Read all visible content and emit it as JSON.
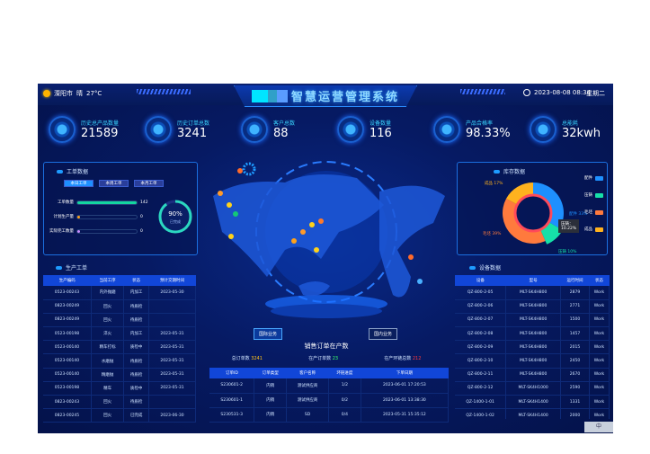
{
  "header": {
    "city": "溧阳市",
    "weather": "晴",
    "temp": "27°C",
    "title": "智慧运营管理系统",
    "datetime": "2023-08-08 08:34",
    "weekday": "星期二"
  },
  "kpis": [
    {
      "label": "历史总产品数量",
      "value": "21589"
    },
    {
      "label": "历史订单总数",
      "value": "3241"
    },
    {
      "label": "客户总数",
      "value": "88"
    },
    {
      "label": "设备数量",
      "value": "116"
    },
    {
      "label": "产品合格率",
      "value": "98.33%"
    },
    {
      "label": "总能耗",
      "value": "32kwh"
    }
  ],
  "work_orders": {
    "title": "工单数据",
    "tabs": [
      "本日工单",
      "本周工单",
      "本月工单"
    ],
    "active_tab": 0,
    "bars": [
      {
        "label": "工单数量",
        "value": "142",
        "fill": 1.0,
        "color": "#13d6a0"
      },
      {
        "label": "计划生产量",
        "value": "0",
        "fill": 0.05,
        "color": "#ffa31a"
      },
      {
        "label": "实际完工数量",
        "value": "0",
        "fill": 0.05,
        "color": "#c88cff"
      }
    ],
    "ring": {
      "percent": "90%",
      "label": "已完成",
      "fraction": 0.9
    }
  },
  "production": {
    "title": "生产工单",
    "columns": [
      "生产编码",
      "当前工序",
      "状态",
      "预计交期时间"
    ],
    "rows": [
      [
        "0523-00243",
        "内外抛磨",
        "内加工",
        "2023-05-30"
      ],
      [
        "0823-00249",
        "回火",
        "待质检",
        ""
      ],
      [
        "0823-00249",
        "回火",
        "待质检",
        ""
      ],
      [
        "0523-00198",
        "淬火",
        "内加工",
        "2023-05-31"
      ],
      [
        "0523-00140",
        "精车打标",
        "质检中",
        "2023-05-31"
      ],
      [
        "0523-00140",
        "水磨抛",
        "待质检",
        "2023-05-31"
      ],
      [
        "0523-00140",
        "精磨抛",
        "待质检",
        "2023-05-31"
      ],
      [
        "0523-00198",
        "精车",
        "质检中",
        "2023-05-31"
      ],
      [
        "0823-00243",
        "回火",
        "待质检",
        ""
      ],
      [
        "0823-00245",
        "回火",
        "已完成",
        "2023-06-30"
      ]
    ]
  },
  "inventory": {
    "title": "库存数据",
    "chart_data": {
      "type": "pie",
      "categories": [
        "配件",
        "压铸",
        "毛坯",
        "成品"
      ],
      "values": [
        33,
        10,
        39,
        17
      ],
      "colors": [
        "#1e90ff",
        "#16e0a8",
        "#ff7a3d",
        "#ffb21e"
      ],
      "data_labels": [
        "配件 33%",
        "压铸 10%",
        "毛坯 39%",
        "成品 17%"
      ],
      "legend": "right",
      "tooltip": {
        "name": "压铸：",
        "value": "10.22%"
      }
    }
  },
  "equipment": {
    "title": "设备数据",
    "columns": [
      "设备",
      "型号",
      "运行时间",
      "状态"
    ],
    "rows": [
      [
        "QZ-800-2-05",
        "MLT-SK4H800",
        "2879",
        "Work"
      ],
      [
        "QZ-800-2-06",
        "MLT-SK4H800",
        "2771",
        "Work"
      ],
      [
        "QZ-800-2-07",
        "MLT-SK4H800",
        "1500",
        "Work"
      ],
      [
        "QZ-800-2-08",
        "MLT-SK4H800",
        "1457",
        "Work"
      ],
      [
        "QZ-800-2-09",
        "MLT-SK4H800",
        "2015",
        "Work"
      ],
      [
        "QZ-800-2-10",
        "MLT-SK4H800",
        "2450",
        "Work"
      ],
      [
        "QZ-800-2-11",
        "MLT-SK4H800",
        "2670",
        "Work"
      ],
      [
        "QZ-800-2-12",
        "MLT-SK4H1000",
        "2590",
        "Work"
      ],
      [
        "QZ-1400-1-01",
        "MLT-SK4H1400",
        "1331",
        "Work"
      ],
      [
        "QZ-1400-1-02",
        "MLT-SK4H1400",
        "2000",
        "Work"
      ]
    ]
  },
  "sales": {
    "btn_intl": "国际业务",
    "btn_domestic": "国内业务",
    "title": "销售订单在产数",
    "stats": [
      {
        "label": "总订单数",
        "value": "3241",
        "color": "#ffc21a"
      },
      {
        "label": "在产订单数",
        "value": "23",
        "color": "#3cff6a"
      },
      {
        "label": "在产环链总数",
        "value": "212",
        "color": "#ff3a3a"
      }
    ],
    "columns": [
      "订单ID",
      "订单类型",
      "客户名称",
      "环链进度",
      "下单日期"
    ],
    "rows": [
      [
        "S230601-2",
        "内销",
        "测试供应商",
        "1/2",
        "2023-06-01 17:20:53"
      ],
      [
        "S230601-1",
        "内销",
        "测试供应商",
        "0/2",
        "2023-06-01 13:38:30"
      ],
      [
        "S230531-3",
        "内销",
        "SD",
        "0/4",
        "2023-05-31 15:35:12"
      ]
    ]
  },
  "ime": "中"
}
